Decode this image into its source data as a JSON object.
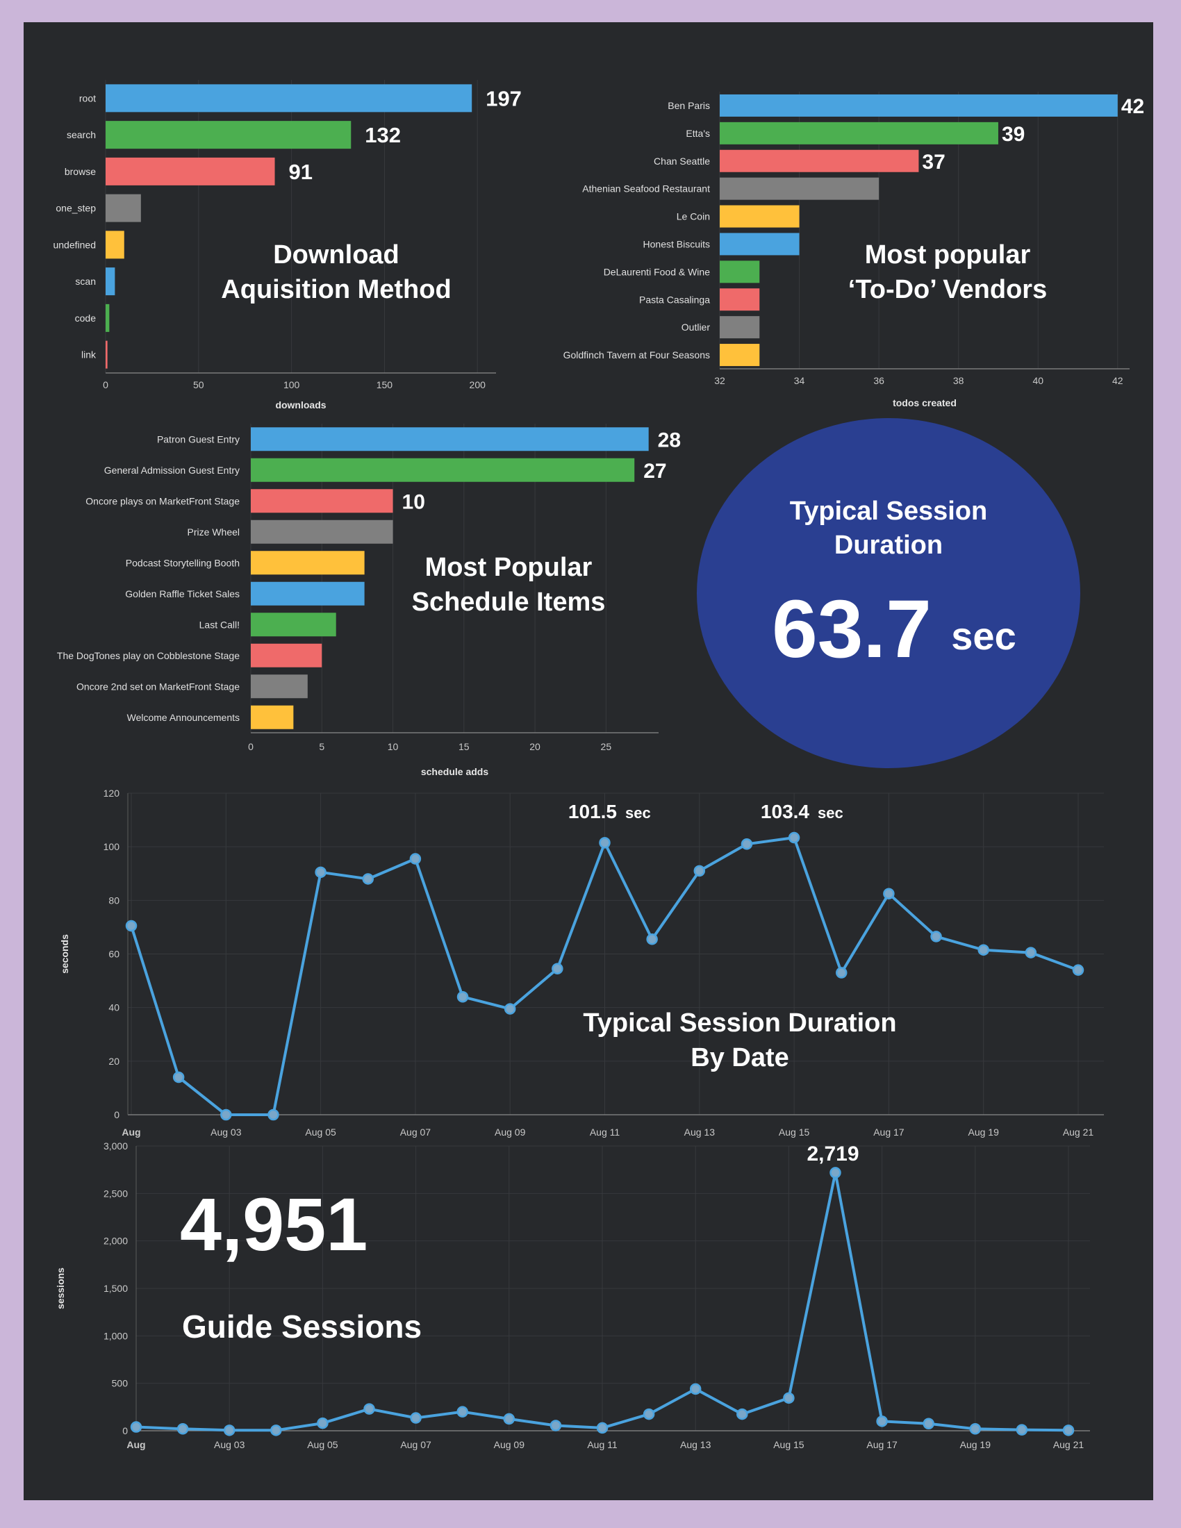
{
  "colors": {
    "frame": "#cbb6d9",
    "background": "#27292c",
    "palette": [
      "#4aa3df",
      "#4caf50",
      "#ef6a6a",
      "#808080",
      "#ffc13b"
    ],
    "line": "#4aa3df",
    "circle": "#2a3f91",
    "axis_text": "#c9c9c9",
    "grid": "#37393d",
    "overlay_text": "#ffffff"
  },
  "overlays": {
    "downloads_title_1": "Download",
    "downloads_title_2": "Aquisition Method",
    "vendors_title_1": "Most popular",
    "vendors_title_2": "‘To-Do’ Vendors",
    "schedule_title_1": "Most Popular",
    "schedule_title_2": "Schedule Items",
    "session_circle_line1": "Typical Session",
    "session_circle_line2": "Duration",
    "session_value": "63.7",
    "session_unit": "sec",
    "duration_title_1": "Typical Session Duration",
    "duration_title_2": "By Date",
    "duration_callout_1_value": "101.5",
    "duration_callout_1_unit": "sec",
    "duration_callout_2_value": "103.4",
    "duration_callout_2_unit": "sec",
    "sessions_callout": "2,719",
    "guide_total": "4,951",
    "guide_label": "Guide Sessions"
  },
  "chart_data": [
    {
      "type": "bar",
      "orientation": "horizontal",
      "categories": [
        "root",
        "search",
        "browse",
        "one_step",
        "undefined",
        "scan",
        "code",
        "link"
      ],
      "values": [
        197,
        132,
        91,
        19,
        10,
        5,
        2,
        1
      ],
      "value_labels": [
        "197",
        "132",
        "91",
        "",
        "",
        "",
        "",
        ""
      ],
      "xlabel": "downloads",
      "xlim": [
        0,
        210
      ],
      "xticks": [
        0,
        50,
        100,
        150,
        200
      ],
      "xtick_labels": [
        "0",
        "50",
        "100",
        "150",
        "200"
      ]
    },
    {
      "type": "bar",
      "orientation": "horizontal",
      "categories": [
        "Ben Paris",
        "Etta's",
        "Chan Seattle",
        "Athenian Seafood Restaurant",
        "Le Coin",
        "Honest Biscuits",
        "DeLaurenti Food & Wine",
        "Pasta Casalinga",
        "Outlier",
        "Goldfinch Tavern at Four Seasons"
      ],
      "values": [
        42,
        39,
        37,
        36,
        34,
        34,
        33,
        33,
        33,
        33
      ],
      "value_labels": [
        "42",
        "39",
        "37",
        "",
        "",
        "",
        "",
        "",
        "",
        ""
      ],
      "xlabel": "todos created",
      "xlim": [
        32,
        42.3
      ],
      "xticks": [
        32,
        34,
        36,
        38,
        40,
        42
      ],
      "xtick_labels": [
        "32",
        "34",
        "36",
        "38",
        "40",
        "42"
      ]
    },
    {
      "type": "bar",
      "orientation": "horizontal",
      "categories": [
        "Patron Guest Entry",
        "General Admission Guest Entry",
        "Oncore plays on MarketFront Stage",
        "Prize Wheel",
        "Podcast Storytelling Booth",
        "Golden Raffle Ticket Sales",
        "Last Call!",
        "The DogTones play on Cobblestone Stage",
        "Oncore 2nd set on MarketFront Stage",
        "Welcome Announcements"
      ],
      "values": [
        28,
        27,
        10,
        10,
        8,
        8,
        6,
        5,
        4,
        3
      ],
      "value_labels": [
        "28",
        "27",
        "10",
        "",
        "",
        "",
        "",
        "",
        "",
        ""
      ],
      "xlabel": "schedule adds",
      "xlim": [
        0,
        28.7
      ],
      "xticks": [
        0,
        5,
        10,
        15,
        20,
        25
      ],
      "xtick_labels": [
        "0",
        "5",
        "10",
        "15",
        "20",
        "25"
      ]
    },
    {
      "type": "line",
      "x": [
        "Aug 01",
        "Aug 02",
        "Aug 03",
        "Aug 04",
        "Aug 05",
        "Aug 06",
        "Aug 07",
        "Aug 08",
        "Aug 09",
        "Aug 10",
        "Aug 11",
        "Aug 12",
        "Aug 13",
        "Aug 14",
        "Aug 15",
        "Aug 16",
        "Aug 17",
        "Aug 18",
        "Aug 19",
        "Aug 20",
        "Aug 21"
      ],
      "y": [
        70.5,
        14,
        0,
        0,
        90.5,
        88,
        95.5,
        44,
        39.5,
        54.5,
        101.5,
        65.5,
        91,
        101,
        103.4,
        53,
        82.5,
        66.5,
        61.5,
        60.5,
        54
      ],
      "ylabel": "seconds",
      "ylim": [
        0,
        120
      ],
      "yticks": [
        0,
        20,
        40,
        60,
        80,
        100,
        120
      ],
      "ytick_labels": [
        "0",
        "20",
        "40",
        "60",
        "80",
        "100",
        "120"
      ],
      "xtick_labels": [
        "Aug",
        "",
        "Aug 03",
        "",
        "Aug 05",
        "",
        "Aug 07",
        "",
        "Aug 09",
        "",
        "Aug 11",
        "",
        "Aug 13",
        "",
        "Aug 15",
        "",
        "Aug 17",
        "",
        "Aug 19",
        "",
        "Aug 21"
      ],
      "grid": true
    },
    {
      "type": "line",
      "x": [
        "Aug 01",
        "Aug 02",
        "Aug 03",
        "Aug 04",
        "Aug 05",
        "Aug 06",
        "Aug 07",
        "Aug 08",
        "Aug 09",
        "Aug 10",
        "Aug 11",
        "Aug 12",
        "Aug 13",
        "Aug 14",
        "Aug 15",
        "Aug 16",
        "Aug 17",
        "Aug 18",
        "Aug 19",
        "Aug 20",
        "Aug 21"
      ],
      "y": [
        40,
        20,
        5,
        5,
        80,
        230,
        135,
        200,
        125,
        55,
        30,
        175,
        440,
        175,
        345,
        2719,
        100,
        75,
        20,
        10,
        5
      ],
      "ylabel": "sessions",
      "ylim": [
        0,
        3000
      ],
      "yticks": [
        0,
        500,
        1000,
        1500,
        2000,
        2500,
        3000
      ],
      "ytick_labels": [
        "0",
        "500",
        "1,000",
        "1,500",
        "2,000",
        "2,500",
        "3,000"
      ],
      "xtick_labels": [
        "Aug",
        "",
        "Aug 03",
        "",
        "Aug 05",
        "",
        "Aug 07",
        "",
        "Aug 09",
        "",
        "Aug 11",
        "",
        "Aug 13",
        "",
        "Aug 15",
        "",
        "Aug 17",
        "",
        "Aug 19",
        "",
        "Aug 21"
      ],
      "grid": true
    }
  ]
}
